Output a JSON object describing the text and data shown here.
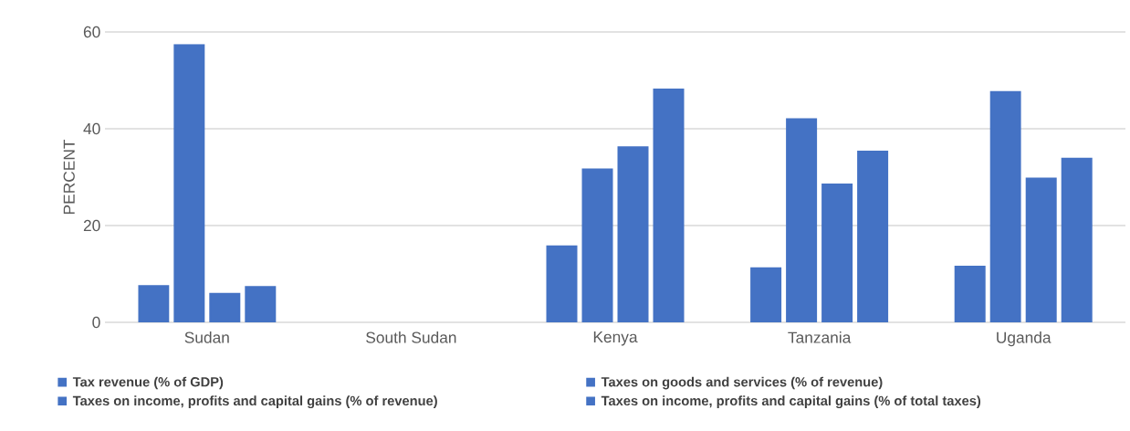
{
  "chart_data": {
    "type": "bar",
    "ylabel": "PERCENT",
    "categories": [
      "Sudan",
      "South Sudan",
      "Kenya",
      "Tanzania",
      "Uganda"
    ],
    "series": [
      {
        "name": "Tax revenue (% of GDP)",
        "color": "#4472c4",
        "values": [
          7.5,
          null,
          15.7,
          11.2,
          11.5
        ]
      },
      {
        "name": "Taxes on goods and services (% of revenue)",
        "color": "#4472c4",
        "values": [
          57.3,
          null,
          31.6,
          42.0,
          47.6
        ]
      },
      {
        "name": "Taxes on income, profits and capital gains (% of revenue)",
        "color": "#4472c4",
        "values": [
          5.9,
          null,
          36.2,
          28.5,
          29.7
        ]
      },
      {
        "name": "Taxes on income, profits and capital gains (% of total taxes)",
        "color": "#4472c4",
        "values": [
          7.3,
          null,
          48.1,
          35.3,
          33.8
        ]
      }
    ],
    "ylim": [
      0,
      60
    ],
    "yticks": [
      0,
      20,
      40,
      60
    ],
    "grid": "y",
    "legend": "bottom"
  }
}
